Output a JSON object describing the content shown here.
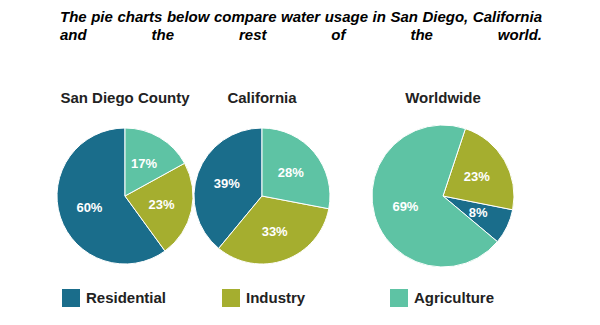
{
  "chart_data": {
    "type": "pie",
    "title": "The pie charts below compare water usage in San Diego, California and the rest of the world.",
    "categories": [
      "Residential",
      "Industry",
      "Agriculture"
    ],
    "colors": [
      "#1a6d8b",
      "#a5ae2f",
      "#5ec3a4"
    ],
    "series": [
      {
        "name": "San Diego County",
        "values": [
          60,
          23,
          17
        ],
        "value_labels": [
          "60%",
          "23%",
          "17%"
        ]
      },
      {
        "name": "California",
        "values": [
          39,
          33,
          28
        ],
        "value_labels": [
          "39%",
          "33%",
          "28%"
        ]
      },
      {
        "name": "Worldwide",
        "values": [
          8,
          23,
          69
        ],
        "value_labels": [
          "8%",
          "23%",
          "69%"
        ]
      }
    ],
    "data_labels": true,
    "legend": "bottom"
  }
}
